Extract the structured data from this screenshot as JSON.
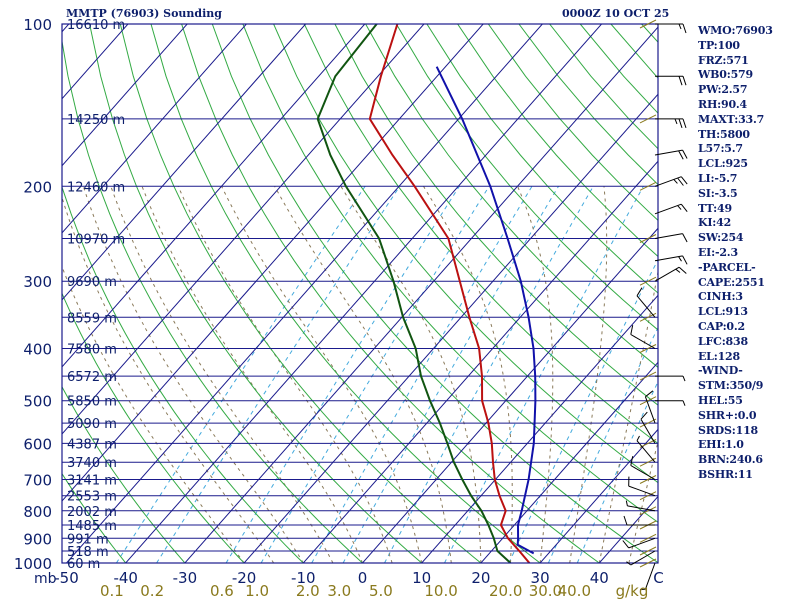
{
  "header": {
    "title": "MMTP (76903) Sounding",
    "date": "0000Z 10 OCT 25"
  },
  "indices": [
    "WMO:76903",
    "TP:100",
    "FRZ:571",
    "WB0:579",
    "PW:2.57",
    "RH:90.4",
    "MAXT:33.7",
    "TH:5800",
    "L57:5.7",
    "LCL:925",
    "LI:-5.7",
    "SI:-3.5",
    "TT:49",
    "KI:42",
    "SW:254",
    "EI:-2.3",
    "-PARCEL-",
    "CAPE:2551",
    "CINH:3",
    "LCL:913",
    "CAP:0.2",
    "LFC:838",
    "EL:128",
    "-WIND-",
    "STM:350/9",
    "HEL:55",
    "SHR+:0.0",
    "SRDS:118",
    "EHI:1.0",
    "BRN:240.6",
    "BSHR:11"
  ],
  "colors": {
    "frame": "#1a1a8c",
    "text": "#0d1f6b",
    "isobar": "#1a1a8c",
    "isotherm": "#1a1a8c",
    "dry_adiabat": "#33aa44",
    "moist_adiabat": "#8a7a5a",
    "mixing_ratio": "#44aadd",
    "temperature": "#bb1111",
    "dewpoint": "#115511",
    "parcel": "#1111aa",
    "tick_olive": "#8a7a1e",
    "barb": "#000000"
  },
  "chart_data": {
    "type": "line",
    "subtype": "skew-T log-P sounding",
    "title": "MMTP (76903) Sounding",
    "subtitle": "0000Z 10 OCT 25",
    "pressure_unit": "mb",
    "ylim": [
      1000,
      100
    ],
    "xlim": [
      -50,
      50
    ],
    "pressure_ticks": [
      100,
      200,
      300,
      400,
      500,
      600,
      700,
      800,
      900,
      1000
    ],
    "pressure_tick_labels": [
      "100",
      "200",
      "300",
      "400",
      "500",
      "600",
      "700",
      "800",
      "900",
      "1000"
    ],
    "temperature_ticks": [
      -50,
      -40,
      -30,
      -20,
      -10,
      0,
      10,
      20,
      30,
      40,
      50
    ],
    "temperature_tick_labels": [
      "-50",
      "-40",
      "-30",
      "-20",
      "-10",
      "0",
      "10",
      "20",
      "30",
      "40",
      "C"
    ],
    "mb_label": "mb",
    "isobar_levels": [
      100,
      150,
      200,
      250,
      300,
      350,
      400,
      450,
      500,
      550,
      600,
      650,
      700,
      750,
      800,
      850,
      900,
      950,
      1000
    ],
    "height_labels": [
      {
        "p": 100,
        "label": "16610 m"
      },
      {
        "p": 150,
        "label": "14250 m"
      },
      {
        "p": 200,
        "label": "12460 m"
      },
      {
        "p": 250,
        "label": "10970 m"
      },
      {
        "p": 300,
        "label": "9690 m"
      },
      {
        "p": 350,
        "label": "8559 m"
      },
      {
        "p": 400,
        "label": "7580 m"
      },
      {
        "p": 450,
        "label": "6572 m"
      },
      {
        "p": 500,
        "label": "5850 m"
      },
      {
        "p": 550,
        "label": "5090 m"
      },
      {
        "p": 600,
        "label": "4387 m"
      },
      {
        "p": 650,
        "label": "3740 m"
      },
      {
        "p": 700,
        "label": "3141 m"
      },
      {
        "p": 750,
        "label": "2553 m"
      },
      {
        "p": 800,
        "label": "2002 m"
      },
      {
        "p": 850,
        "label": "1485 m"
      },
      {
        "p": 900,
        "label": "991 m"
      },
      {
        "p": 950,
        "label": "518 m"
      },
      {
        "p": 1000,
        "label": "60 m"
      }
    ],
    "mixing_ratio_values": [
      0.1,
      0.2,
      0.6,
      1.0,
      2.0,
      3.0,
      5.0,
      10.0,
      20.0,
      30.0,
      40.0
    ],
    "mixing_ratio_labels": [
      "0.1",
      "0.2",
      "0.6",
      "1.0",
      "2.0",
      "3.0",
      "5.0",
      "10.0",
      "20.0",
      "30.0",
      "40.0"
    ],
    "mixing_ratio_unit": "g/kg",
    "series": [
      {
        "name": "Temperature",
        "points": [
          [
            1000,
            28.2
          ],
          [
            950,
            24.7
          ],
          [
            900,
            20.9
          ],
          [
            850,
            17.7
          ],
          [
            800,
            16.4
          ],
          [
            750,
            13.1
          ],
          [
            700,
            9.9
          ],
          [
            650,
            7.0
          ],
          [
            600,
            4.0
          ],
          [
            550,
            0.4
          ],
          [
            500,
            -4.0
          ],
          [
            450,
            -7.7
          ],
          [
            400,
            -12.3
          ],
          [
            350,
            -18.6
          ],
          [
            300,
            -25.6
          ],
          [
            250,
            -33.9
          ],
          [
            200,
            -47.4
          ],
          [
            175,
            -55.8
          ],
          [
            150,
            -65.0
          ],
          [
            125,
            -69.5
          ],
          [
            100,
            -74.5
          ]
        ]
      },
      {
        "name": "Dewpoint",
        "points": [
          [
            1000,
            25.0
          ],
          [
            950,
            21.0
          ],
          [
            900,
            18.5
          ],
          [
            850,
            15.6
          ],
          [
            800,
            12.3
          ],
          [
            750,
            8.3
          ],
          [
            700,
            4.4
          ],
          [
            650,
            0.4
          ],
          [
            600,
            -3.5
          ],
          [
            550,
            -7.8
          ],
          [
            500,
            -12.8
          ],
          [
            450,
            -18.0
          ],
          [
            400,
            -23.0
          ],
          [
            350,
            -29.8
          ],
          [
            300,
            -36.8
          ],
          [
            250,
            -45.6
          ],
          [
            200,
            -59.0
          ],
          [
            175,
            -66.3
          ],
          [
            150,
            -73.8
          ],
          [
            125,
            -77.2
          ],
          [
            100,
            -78.0
          ]
        ]
      },
      {
        "name": "Parcel",
        "points": [
          [
            960,
            27.5
          ],
          [
            925,
            23.5
          ],
          [
            900,
            22.6
          ],
          [
            850,
            20.6
          ],
          [
            800,
            19.1
          ],
          [
            700,
            15.6
          ],
          [
            600,
            11.1
          ],
          [
            500,
            5.0
          ],
          [
            450,
            1.3
          ],
          [
            400,
            -3.1
          ],
          [
            350,
            -8.6
          ],
          [
            300,
            -15.3
          ],
          [
            250,
            -23.9
          ],
          [
            200,
            -34.6
          ],
          [
            150,
            -49.4
          ],
          [
            120,
            -61.5
          ]
        ]
      }
    ],
    "wind_barbs": [
      {
        "p": 100,
        "dir": 90,
        "kt": 15
      },
      {
        "p": 125,
        "dir": 90,
        "kt": 20
      },
      {
        "p": 150,
        "dir": 90,
        "kt": 25
      },
      {
        "p": 175,
        "dir": 80,
        "kt": 20
      },
      {
        "p": 200,
        "dir": 70,
        "kt": 25
      },
      {
        "p": 225,
        "dir": 70,
        "kt": 15
      },
      {
        "p": 250,
        "dir": 80,
        "kt": 10
      },
      {
        "p": 275,
        "dir": 80,
        "kt": 15
      },
      {
        "p": 300,
        "dir": 60,
        "kt": 15
      },
      {
        "p": 350,
        "dir": 320,
        "kt": 10
      },
      {
        "p": 400,
        "dir": 300,
        "kt": 10
      },
      {
        "p": 450,
        "dir": 90,
        "kt": 5
      },
      {
        "p": 500,
        "dir": 90,
        "kt": 5
      },
      {
        "p": 550,
        "dir": 340,
        "kt": 10
      },
      {
        "p": 600,
        "dir": 330,
        "kt": 10
      },
      {
        "p": 650,
        "dir": 320,
        "kt": 5
      },
      {
        "p": 700,
        "dir": 300,
        "kt": 10
      },
      {
        "p": 750,
        "dir": 290,
        "kt": 10
      },
      {
        "p": 800,
        "dir": 280,
        "kt": 5
      },
      {
        "p": 850,
        "dir": 270,
        "kt": 10
      },
      {
        "p": 900,
        "dir": 250,
        "kt": 10
      },
      {
        "p": 950,
        "dir": 240,
        "kt": 5
      },
      {
        "p": 1000,
        "dir": 200,
        "kt": 5
      }
    ]
  }
}
